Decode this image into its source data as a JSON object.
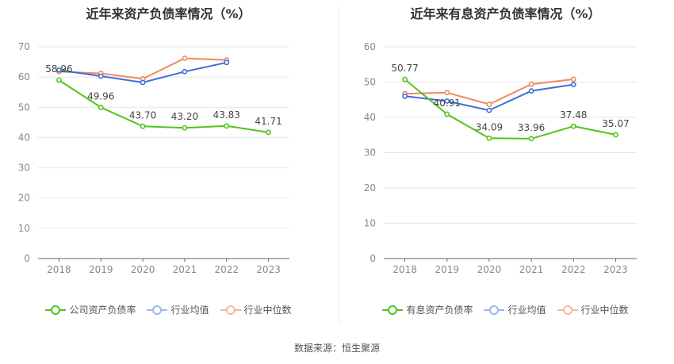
{
  "source_label": "数据来源：恒生聚源",
  "chart_data": [
    {
      "type": "line",
      "title": "近年来资产负债率情况（%）",
      "categories": [
        "2018",
        "2019",
        "2020",
        "2021",
        "2022",
        "2023"
      ],
      "ylim": [
        0,
        70
      ],
      "yticks": [
        0,
        10,
        20,
        30,
        40,
        50,
        60,
        70
      ],
      "series": [
        {
          "name": "公司资产负债率",
          "color": "#52c41a",
          "values": [
            58.96,
            49.96,
            43.7,
            43.2,
            43.83,
            41.71
          ],
          "labels": [
            "58.96",
            "49.96",
            "43.70",
            "43.20",
            "43.83",
            "41.71"
          ]
        },
        {
          "name": "行业均值",
          "color": "#3d6fd9",
          "values": [
            62.3,
            60.3,
            58.2,
            61.8,
            64.8,
            null
          ]
        },
        {
          "name": "行业中位数",
          "color": "#f08a5d",
          "values": [
            61.8,
            61.2,
            59.4,
            66.2,
            65.6,
            null
          ]
        }
      ]
    },
    {
      "type": "line",
      "title": "近年来有息资产负债率情况（%）",
      "categories": [
        "2018",
        "2019",
        "2020",
        "2021",
        "2022",
        "2023"
      ],
      "ylim": [
        0,
        60
      ],
      "yticks": [
        0,
        10,
        20,
        30,
        40,
        50,
        60
      ],
      "series": [
        {
          "name": "有息资产负债率",
          "color": "#52c41a",
          "values": [
            50.77,
            40.91,
            34.09,
            33.96,
            37.48,
            35.07
          ],
          "labels": [
            "50.77",
            "40.91",
            "34.09",
            "33.96",
            "37.48",
            "35.07"
          ]
        },
        {
          "name": "行业均值",
          "color": "#3d6fd9",
          "values": [
            46.0,
            44.6,
            42.0,
            47.5,
            49.3,
            null
          ]
        },
        {
          "name": "行业中位数",
          "color": "#f08a5d",
          "values": [
            46.7,
            47.0,
            43.7,
            49.4,
            50.8,
            null
          ]
        }
      ]
    }
  ]
}
